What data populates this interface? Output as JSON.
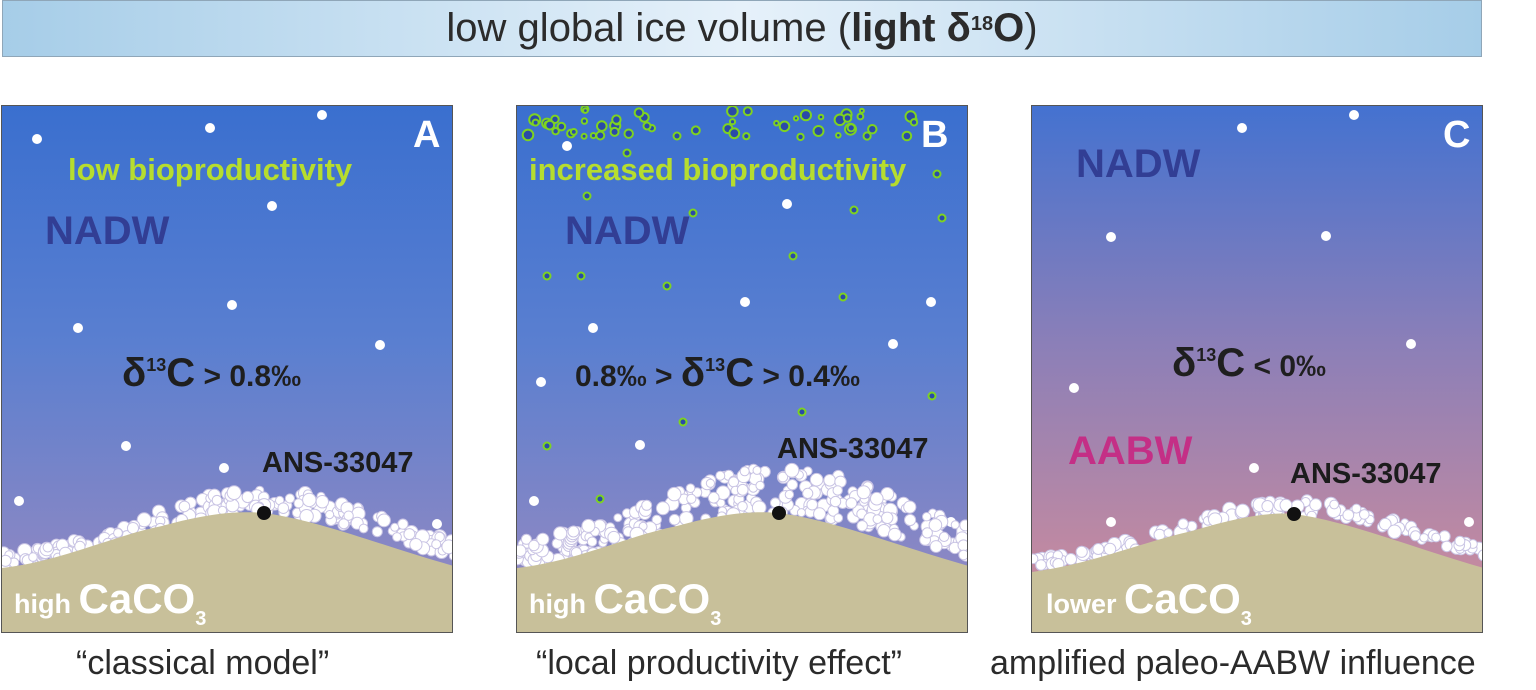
{
  "banner": {
    "text_prefix": "low global ice volume (",
    "text_bold": "light δ",
    "superscript": "18",
    "bold_suffix": "O",
    "close": ")"
  },
  "panels": [
    {
      "letter": "A",
      "bioproductivity": "low bioproductivity",
      "water_mass_upper": "NADW",
      "water_mass_lower": "",
      "d13c_prefix": "",
      "d13c_symbol": "δ",
      "d13c_sup": "13",
      "d13c_c": "C",
      "d13c_suffix": " > 0.8‰",
      "station": "ANS-33047",
      "caco3_adj": "high",
      "caco3_formula": "CaCO",
      "caco3_sub": "3",
      "caption": "“classical model”"
    },
    {
      "letter": "B",
      "bioproductivity": "increased bioproductivity",
      "water_mass_upper": "NADW",
      "water_mass_lower": "",
      "d13c_prefix": "0.8‰ > ",
      "d13c_symbol": "δ",
      "d13c_sup": "13",
      "d13c_c": "C",
      "d13c_suffix": " > 0.4‰",
      "station": "ANS-33047",
      "caco3_adj": "high",
      "caco3_formula": "CaCO",
      "caco3_sub": "3",
      "caption": "“local productivity effect”"
    },
    {
      "letter": "C",
      "bioproductivity": "",
      "water_mass_upper": "NADW",
      "water_mass_lower": "AABW",
      "d13c_prefix": "",
      "d13c_symbol": "δ",
      "d13c_sup": "13",
      "d13c_c": "C",
      "d13c_suffix": " < 0‰",
      "station": "ANS-33047",
      "caco3_adj": "lower",
      "caco3_formula": "CaCO",
      "caco3_sub": "3",
      "caption": "amplified paleo-AABW influence"
    }
  ],
  "colors": {
    "seafloor": "#c8c09a",
    "nadw": "#323e94",
    "aabw": "#c42f86",
    "bioproductivity": "#b6dd2e",
    "particles": "#ffffff",
    "plankton_ring": "#7ed321"
  }
}
